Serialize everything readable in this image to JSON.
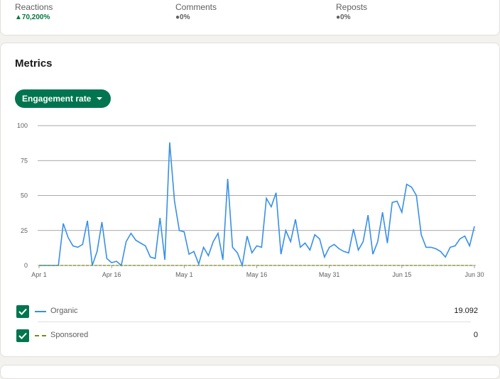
{
  "stats": [
    {
      "label": "Reactions",
      "change": "70,200%",
      "trend": "up"
    },
    {
      "label": "Comments",
      "change": "0%",
      "trend": "neutral"
    },
    {
      "label": "Reposts",
      "change": "0%",
      "trend": "neutral"
    }
  ],
  "metrics": {
    "title": "Metrics",
    "dropdown_label": "Engagement rate",
    "legend": [
      {
        "name": "Organic",
        "value": "19.092",
        "color": "#378fe9",
        "checked": true
      },
      {
        "name": "Sponsored",
        "value": "0",
        "color": "#7a8b1e",
        "checked": true
      }
    ]
  },
  "chart_data": {
    "type": "line",
    "ylim": [
      0,
      100
    ],
    "yticks": [
      "100",
      "75",
      "50",
      "25",
      "0"
    ],
    "xticks": [
      "Apr 1",
      "Apr 16",
      "May 1",
      "May 16",
      "May 31",
      "Jun 15",
      "Jun 30"
    ],
    "series": [
      {
        "name": "Organic",
        "color": "#378fe9",
        "values": [
          0,
          0,
          0,
          0,
          0,
          30,
          20,
          14,
          13,
          15,
          32,
          0,
          10,
          31,
          5,
          2,
          3,
          0,
          17,
          23,
          18,
          16,
          14,
          6,
          5,
          34,
          4,
          88,
          46,
          25,
          24,
          8,
          10,
          1,
          13,
          7,
          17,
          23,
          4,
          62,
          13,
          9,
          0,
          21,
          9,
          14,
          13,
          48,
          42,
          52,
          8,
          25,
          17,
          33,
          13,
          16,
          11,
          22,
          19,
          6,
          13,
          15,
          12,
          10,
          9,
          26,
          11,
          17,
          36,
          8,
          17,
          38,
          16,
          45,
          46,
          38,
          58,
          56,
          50,
          22,
          13,
          13,
          12,
          10,
          6,
          13,
          14,
          19,
          21,
          14,
          28
        ]
      },
      {
        "name": "Sponsored",
        "color": "#7a8b1e",
        "values": [
          0,
          0,
          0,
          0,
          0,
          0,
          0,
          0,
          0,
          0,
          0,
          0,
          0,
          0,
          0,
          0,
          0,
          0,
          0,
          0,
          0,
          0,
          0,
          0,
          0,
          0,
          0,
          0,
          0,
          0,
          0,
          0,
          0,
          0,
          0,
          0,
          0,
          0,
          0,
          0,
          0,
          0,
          0,
          0,
          0,
          0,
          0,
          0,
          0,
          0,
          0,
          0,
          0,
          0,
          0,
          0,
          0,
          0,
          0,
          0,
          0,
          0,
          0,
          0,
          0,
          0,
          0,
          0,
          0,
          0,
          0,
          0,
          0,
          0,
          0,
          0,
          0,
          0,
          0,
          0,
          0,
          0,
          0,
          0,
          0,
          0,
          0,
          0,
          0,
          0,
          0
        ]
      }
    ]
  }
}
